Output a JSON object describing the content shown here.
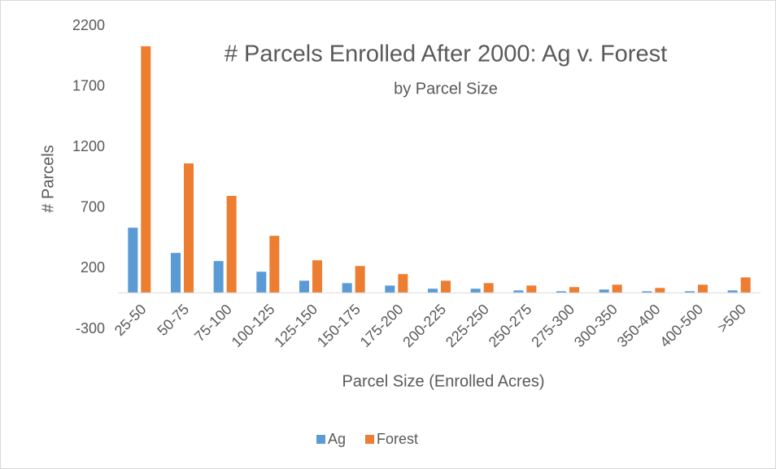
{
  "chart_data": {
    "type": "bar",
    "title": "# Parcels Enrolled After 2000: Ag v. Forest",
    "subtitle": "by Parcel Size",
    "x_label": "Parcel Size (Enrolled Acres)",
    "y_label": "# Parcels",
    "categories": [
      "25-50",
      "50-75",
      "75-100",
      "100-125",
      "125-150",
      "150-175",
      "175-200",
      "200-225",
      "225-250",
      "250-275",
      "275-300",
      "300-350",
      "350-400",
      "400-500",
      ">500"
    ],
    "series": [
      {
        "name": "Ag",
        "color": "#5b9bd5",
        "values": [
          537,
          329,
          262,
          174,
          100,
          80,
          60,
          34,
          34,
          20,
          13,
          27,
          13,
          13,
          20
        ]
      },
      {
        "name": "Forest",
        "color": "#ed7d31",
        "values": [
          2033,
          1067,
          799,
          470,
          268,
          221,
          154,
          100,
          80,
          60,
          47,
          67,
          40,
          67,
          127
        ]
      }
    ],
    "ylim": [
      -300,
      2200
    ],
    "yticks": [
      -300,
      200,
      700,
      1200,
      1700,
      2200
    ],
    "grid": false,
    "legend": "bottom"
  }
}
